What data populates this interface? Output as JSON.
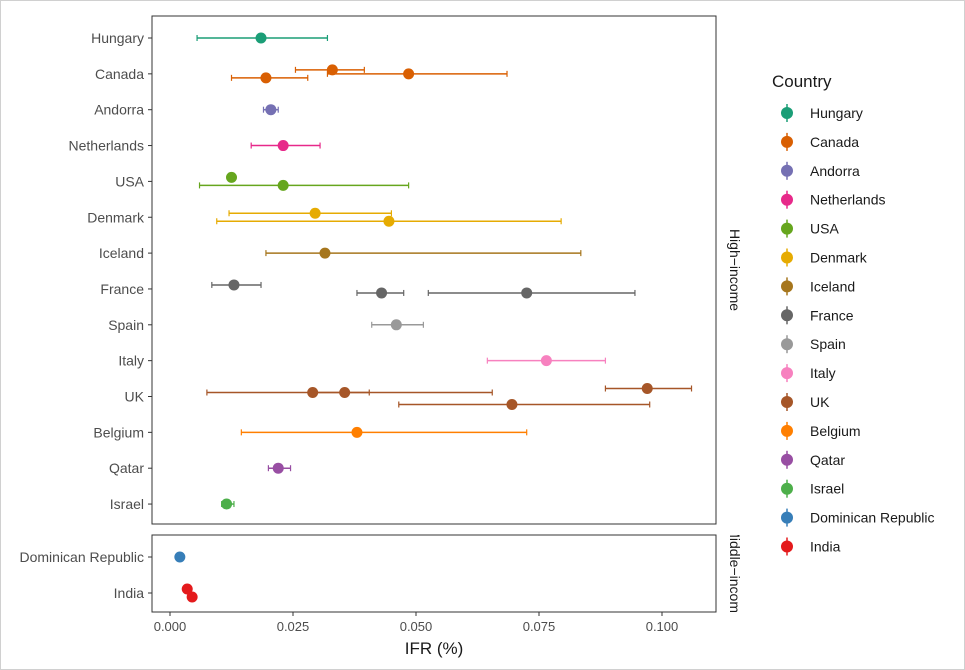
{
  "chart_data": {
    "type": "scatter",
    "xlabel": "IFR (%)",
    "xlim": [
      0,
      0.1
    ],
    "x_ticks": [
      "0.000",
      "0.025",
      "0.050",
      "0.075",
      "0.100"
    ],
    "x_tick_values": [
      0,
      0.025,
      0.05,
      0.075,
      0.1
    ],
    "legend_title": "Country",
    "legend_position": "right",
    "grid": false,
    "panels": [
      {
        "strip_label": "High−income",
        "categories": [
          "Hungary",
          "Canada",
          "Andorra",
          "Netherlands",
          "USA",
          "Denmark",
          "Iceland",
          "France",
          "Spain",
          "Italy",
          "UK",
          "Belgium",
          "Qatar",
          "Israel"
        ]
      },
      {
        "strip_label": "Middle−income",
        "categories": [
          "Dominican Republic",
          "India"
        ]
      }
    ],
    "series": [
      {
        "name": "Hungary",
        "color": "#1b9e77",
        "points": [
          {
            "category": "Hungary",
            "offset": 0,
            "x": 0.0185,
            "lo": 0.0055,
            "hi": 0.032
          }
        ]
      },
      {
        "name": "Canada",
        "color": "#d95f02",
        "points": [
          {
            "category": "Canada",
            "offset": -1,
            "x": 0.033,
            "lo": 0.0255,
            "hi": 0.0395
          },
          {
            "category": "Canada",
            "offset": 0,
            "x": 0.0485,
            "lo": 0.032,
            "hi": 0.0685
          },
          {
            "category": "Canada",
            "offset": 1,
            "x": 0.0195,
            "lo": 0.0125,
            "hi": 0.028
          }
        ]
      },
      {
        "name": "Andorra",
        "color": "#7570b3",
        "points": [
          {
            "category": "Andorra",
            "offset": 0,
            "x": 0.0205,
            "lo": 0.019,
            "hi": 0.022
          }
        ]
      },
      {
        "name": "Netherlands",
        "color": "#e7298a",
        "points": [
          {
            "category": "Netherlands",
            "offset": 0,
            "x": 0.023,
            "lo": 0.0165,
            "hi": 0.0305
          }
        ]
      },
      {
        "name": "USA",
        "color": "#66a61e",
        "points": [
          {
            "category": "USA",
            "offset": -1,
            "x": 0.0125,
            "lo": 0.0125,
            "hi": 0.0125
          },
          {
            "category": "USA",
            "offset": 1,
            "x": 0.023,
            "lo": 0.006,
            "hi": 0.0485
          }
        ]
      },
      {
        "name": "Denmark",
        "color": "#e6ab02",
        "points": [
          {
            "category": "Denmark",
            "offset": -1,
            "x": 0.0295,
            "lo": 0.012,
            "hi": 0.045
          },
          {
            "category": "Denmark",
            "offset": 1,
            "x": 0.0445,
            "lo": 0.0095,
            "hi": 0.0795
          }
        ]
      },
      {
        "name": "Iceland",
        "color": "#a6761d",
        "points": [
          {
            "category": "Iceland",
            "offset": 0,
            "x": 0.0315,
            "lo": 0.0195,
            "hi": 0.0835
          }
        ]
      },
      {
        "name": "France",
        "color": "#666666",
        "points": [
          {
            "category": "France",
            "offset": -1,
            "x": 0.013,
            "lo": 0.0085,
            "hi": 0.0185
          },
          {
            "category": "France",
            "offset": 1,
            "x": 0.043,
            "lo": 0.038,
            "hi": 0.0475
          },
          {
            "category": "France",
            "offset": 1,
            "x": 0.0725,
            "lo": 0.0525,
            "hi": 0.0945
          }
        ]
      },
      {
        "name": "Spain",
        "color": "#999999",
        "points": [
          {
            "category": "Spain",
            "offset": 0,
            "x": 0.046,
            "lo": 0.041,
            "hi": 0.0515
          }
        ]
      },
      {
        "name": "Italy",
        "color": "#f781bf",
        "points": [
          {
            "category": "Italy",
            "offset": 0,
            "x": 0.0765,
            "lo": 0.0645,
            "hi": 0.0885
          }
        ]
      },
      {
        "name": "UK",
        "color": "#a65628",
        "points": [
          {
            "category": "UK",
            "offset": -2,
            "x": 0.097,
            "lo": 0.0885,
            "hi": 0.106
          },
          {
            "category": "UK",
            "offset": -1,
            "x": 0.029,
            "lo": 0.0075,
            "hi": 0.0655
          },
          {
            "category": "UK",
            "offset": -1,
            "x": 0.0355,
            "lo": 0.0295,
            "hi": 0.0405
          },
          {
            "category": "UK",
            "offset": 2,
            "x": 0.0695,
            "lo": 0.0465,
            "hi": 0.0975
          }
        ]
      },
      {
        "name": "Belgium",
        "color": "#ff7f00",
        "points": [
          {
            "category": "Belgium",
            "offset": 0,
            "x": 0.038,
            "lo": 0.0145,
            "hi": 0.0725
          }
        ]
      },
      {
        "name": "Qatar",
        "color": "#984ea3",
        "points": [
          {
            "category": "Qatar",
            "offset": 0,
            "x": 0.022,
            "lo": 0.02,
            "hi": 0.0245
          }
        ]
      },
      {
        "name": "Israel",
        "color": "#4daf4a",
        "points": [
          {
            "category": "Israel",
            "offset": 0,
            "x": 0.0115,
            "lo": 0.0105,
            "hi": 0.013
          }
        ]
      },
      {
        "name": "Dominican Republic",
        "color": "#377eb8",
        "points": [
          {
            "category": "Dominican Republic",
            "offset": 0,
            "x": 0.002,
            "lo": 0.002,
            "hi": 0.002
          }
        ]
      },
      {
        "name": "India",
        "color": "#e41a1c",
        "points": [
          {
            "category": "India",
            "offset": -1,
            "x": 0.0035,
            "lo": 0.0035,
            "hi": 0.0035
          },
          {
            "category": "India",
            "offset": 1,
            "x": 0.0045,
            "lo": 0.0045,
            "hi": 0.0045
          }
        ]
      }
    ]
  }
}
